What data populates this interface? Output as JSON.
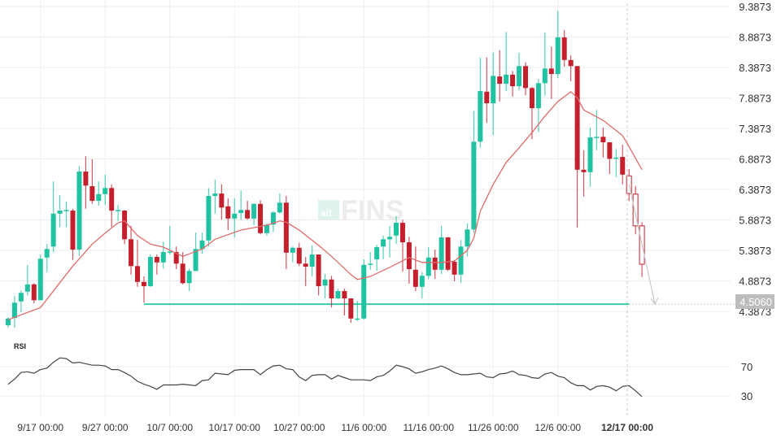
{
  "chart_data": [
    {
      "type": "candlestick",
      "colors": {
        "up": "#1fc3a1",
        "down": "#c41f2d",
        "ma": "#e06a6a",
        "support": "#3ccaa7",
        "projection": "#c8c8c8",
        "grid": "#ececec"
      },
      "y_ticks": [
        "9.3873",
        "8.8873",
        "8.3873",
        "7.8873",
        "7.3873",
        "6.8873",
        "6.3873",
        "5.8873",
        "5.3873",
        "4.8873",
        "4.3873"
      ],
      "ylim": [
        4.2,
        9.45
      ],
      "x_ticks": [
        "9/17 00:00",
        "9/27 00:00",
        "10/7 00:00",
        "10/17 00:00",
        "10/27 00:00",
        "11/6 00:00",
        "11/16 00:00",
        "11/26 00:00",
        "12/6 00:00"
      ],
      "crosshair_label": "12/17 00:00",
      "candle_fields": [
        "date",
        "open",
        "high",
        "low",
        "close"
      ],
      "candles": [
        [
          "9/12",
          4.16,
          4.29,
          4.12,
          4.27
        ],
        [
          "9/13",
          4.28,
          4.64,
          4.12,
          4.53
        ],
        [
          "9/14",
          4.55,
          4.73,
          4.37,
          4.69
        ],
        [
          "9/15",
          4.71,
          5.15,
          4.65,
          4.83
        ],
        [
          "9/16",
          4.83,
          4.85,
          4.52,
          4.57
        ],
        [
          "9/17",
          4.57,
          5.32,
          4.57,
          5.25
        ],
        [
          "9/18",
          5.27,
          5.49,
          5.03,
          5.41
        ],
        [
          "9/19",
          5.45,
          6.52,
          5.36,
          5.99
        ],
        [
          "9/20",
          5.99,
          6.29,
          5.77,
          6.04
        ],
        [
          "9/21",
          6.03,
          6.19,
          5.77,
          6.05
        ],
        [
          "9/22",
          6.04,
          6.07,
          5.23,
          5.4
        ],
        [
          "9/23",
          5.4,
          6.77,
          5.29,
          6.68
        ],
        [
          "9/24",
          6.68,
          6.93,
          6.07,
          6.45
        ],
        [
          "9/25",
          6.44,
          6.88,
          6.15,
          6.2
        ],
        [
          "9/26",
          6.2,
          6.52,
          6.12,
          6.31
        ],
        [
          "9/27",
          6.31,
          6.63,
          6.13,
          6.41
        ],
        [
          "9/28",
          6.41,
          6.47,
          5.77,
          6.04
        ],
        [
          "9/29",
          6.03,
          6.13,
          5.87,
          6.05
        ],
        [
          "9/30",
          6.04,
          6.05,
          5.49,
          5.57
        ],
        [
          "10/1",
          5.57,
          5.79,
          4.99,
          5.13
        ],
        [
          "10/2",
          5.13,
          5.56,
          4.79,
          4.87
        ],
        [
          "10/3",
          4.87,
          4.96,
          4.53,
          4.8
        ],
        [
          "10/4",
          4.8,
          5.32,
          4.79,
          5.28
        ],
        [
          "10/5",
          5.28,
          5.32,
          4.99,
          5.19
        ],
        [
          "10/6",
          5.19,
          5.53,
          5.09,
          5.36
        ],
        [
          "10/7",
          5.35,
          5.79,
          5.32,
          5.37
        ],
        [
          "10/8",
          5.36,
          5.45,
          5.08,
          5.17
        ],
        [
          "10/9",
          5.17,
          5.36,
          4.83,
          4.85
        ],
        [
          "10/10",
          4.85,
          5.09,
          4.72,
          5.05
        ],
        [
          "10/11",
          5.05,
          5.68,
          5.05,
          5.41
        ],
        [
          "10/12",
          5.41,
          5.68,
          5.33,
          5.55
        ],
        [
          "10/13",
          5.55,
          6.41,
          5.45,
          6.28
        ],
        [
          "10/14",
          6.28,
          6.55,
          5.99,
          6.32
        ],
        [
          "10/15",
          6.32,
          6.47,
          5.89,
          6.09
        ],
        [
          "10/16",
          6.11,
          6.24,
          5.72,
          5.91
        ],
        [
          "10/17",
          5.91,
          6.24,
          5.6,
          5.99
        ],
        [
          "10/18",
          6.0,
          6.37,
          5.89,
          6.05
        ],
        [
          "10/19",
          6.05,
          6.2,
          5.89,
          5.91
        ],
        [
          "10/20",
          5.91,
          6.16,
          5.8,
          6.15
        ],
        [
          "10/21",
          6.15,
          6.21,
          5.65,
          5.67
        ],
        [
          "10/22",
          5.67,
          5.83,
          5.63,
          5.81
        ],
        [
          "10/23",
          5.81,
          6.03,
          5.69,
          6.01
        ],
        [
          "10/24",
          6.01,
          6.32,
          5.99,
          6.17
        ],
        [
          "10/25",
          6.17,
          6.28,
          5.08,
          5.35
        ],
        [
          "10/26",
          5.35,
          5.45,
          5.19,
          5.43
        ],
        [
          "10/27",
          5.43,
          5.51,
          5.13,
          5.17
        ],
        [
          "10/28",
          5.17,
          5.28,
          4.8,
          5.12
        ],
        [
          "10/29",
          5.12,
          5.47,
          4.96,
          5.32
        ],
        [
          "10/30",
          5.32,
          5.32,
          4.65,
          4.8
        ],
        [
          "10/31",
          4.81,
          5.0,
          4.6,
          4.91
        ],
        [
          "11/1",
          4.91,
          4.97,
          4.45,
          4.6
        ],
        [
          "11/2",
          4.6,
          4.76,
          4.59,
          4.72
        ],
        [
          "11/3",
          4.72,
          4.76,
          4.32,
          4.6
        ],
        [
          "11/4",
          4.6,
          4.6,
          4.2,
          4.27
        ],
        [
          "11/5",
          4.26,
          4.56,
          4.23,
          4.27
        ],
        [
          "11/6",
          4.27,
          5.24,
          4.25,
          5.15
        ],
        [
          "11/7",
          5.15,
          5.36,
          5.07,
          5.17
        ],
        [
          "11/8",
          5.24,
          5.48,
          5.05,
          5.44
        ],
        [
          "11/9",
          5.45,
          5.63,
          5.24,
          5.57
        ],
        [
          "11/10",
          5.57,
          5.79,
          5.27,
          5.61
        ],
        [
          "11/11",
          5.63,
          5.95,
          5.49,
          5.84
        ],
        [
          "11/12",
          5.84,
          5.89,
          5.04,
          5.52
        ],
        [
          "11/13",
          5.52,
          5.61,
          4.84,
          5.08
        ],
        [
          "11/14",
          5.07,
          5.45,
          4.72,
          4.79
        ],
        [
          "11/15",
          4.79,
          5.03,
          4.6,
          4.97
        ],
        [
          "11/16",
          4.97,
          5.44,
          4.92,
          5.27
        ],
        [
          "11/17",
          5.27,
          5.4,
          4.92,
          5.07
        ],
        [
          "11/18",
          5.07,
          5.79,
          5.0,
          5.6
        ],
        [
          "11/19",
          5.6,
          5.61,
          5.05,
          5.07
        ],
        [
          "11/20",
          5.2,
          5.23,
          4.88,
          4.99
        ],
        [
          "11/21",
          4.99,
          5.56,
          4.85,
          5.45
        ],
        [
          "11/22",
          5.45,
          5.83,
          5.29,
          5.73
        ],
        [
          "11/23",
          5.73,
          7.67,
          5.67,
          7.17
        ],
        [
          "11/24",
          7.17,
          8.55,
          7.07,
          8.0
        ],
        [
          "11/25",
          7.99,
          8.55,
          7.48,
          7.8
        ],
        [
          "11/26",
          7.8,
          8.63,
          7.28,
          8.25
        ],
        [
          "11/27",
          8.24,
          8.67,
          7.83,
          8.12
        ],
        [
          "11/28",
          8.12,
          8.97,
          8.0,
          8.27
        ],
        [
          "11/29",
          8.27,
          8.33,
          7.91,
          8.08
        ],
        [
          "11/30",
          8.08,
          8.63,
          8.01,
          8.41
        ],
        [
          "12/1",
          8.41,
          8.47,
          7.93,
          8.05
        ],
        [
          "12/2",
          8.05,
          8.07,
          7.21,
          7.72
        ],
        [
          "12/3",
          7.72,
          8.2,
          7.33,
          8.13
        ],
        [
          "12/4",
          8.13,
          8.96,
          7.93,
          8.37
        ],
        [
          "12/5",
          8.37,
          8.73,
          7.87,
          8.28
        ],
        [
          "12/6",
          8.28,
          9.32,
          8.21,
          8.88
        ],
        [
          "12/7",
          8.88,
          9.0,
          8.4,
          8.51
        ],
        [
          "12/8",
          8.51,
          8.59,
          8.16,
          8.41
        ],
        [
          "12/9",
          8.41,
          8.41,
          5.76,
          6.71
        ],
        [
          "12/10",
          6.71,
          7.03,
          6.27,
          6.67
        ],
        [
          "12/11",
          6.67,
          7.4,
          6.43,
          7.24
        ],
        [
          "12/12",
          7.25,
          7.69,
          7.03,
          7.25
        ],
        [
          "12/13",
          7.25,
          7.4,
          6.91,
          7.16
        ],
        [
          "12/14",
          7.16,
          7.16,
          6.64,
          6.89
        ],
        [
          "12/15",
          6.9,
          7.05,
          6.59,
          6.91
        ],
        [
          "12/16",
          6.92,
          7.12,
          6.47,
          6.63
        ],
        [
          "12/17",
          6.61,
          6.72,
          6.2,
          6.32
        ],
        [
          "12/18",
          6.31,
          6.44,
          5.65,
          5.79
        ],
        [
          "12/19",
          5.79,
          5.85,
          4.95,
          5.16
        ]
      ],
      "hollow_from_date": "12/17",
      "moving_average": [
        [
          "9/12",
          4.25
        ],
        [
          "9/17",
          4.45
        ],
        [
          "9/22",
          5.13
        ],
        [
          "9/25",
          5.49
        ],
        [
          "9/27",
          5.67
        ],
        [
          "9/29",
          5.84
        ],
        [
          "9/30",
          5.87
        ],
        [
          "10/2",
          5.63
        ],
        [
          "10/4",
          5.49
        ],
        [
          "10/6",
          5.44
        ],
        [
          "10/9",
          5.29
        ],
        [
          "10/12",
          5.41
        ],
        [
          "10/14",
          5.57
        ],
        [
          "10/18",
          5.72
        ],
        [
          "10/22",
          5.8
        ],
        [
          "10/24",
          5.87
        ],
        [
          "10/25",
          5.85
        ],
        [
          "10/27",
          5.72
        ],
        [
          "10/30",
          5.47
        ],
        [
          "11/1",
          5.29
        ],
        [
          "11/4",
          4.99
        ],
        [
          "11/5",
          4.91
        ],
        [
          "11/7",
          4.96
        ],
        [
          "11/10",
          5.11
        ],
        [
          "11/13",
          5.27
        ],
        [
          "11/15",
          5.19
        ],
        [
          "11/18",
          5.19
        ],
        [
          "11/20",
          5.21
        ],
        [
          "11/22",
          5.39
        ],
        [
          "11/23",
          5.59
        ],
        [
          "11/24",
          6.03
        ],
        [
          "11/26",
          6.47
        ],
        [
          "11/28",
          6.83
        ],
        [
          "11/30",
          7.07
        ],
        [
          "12/2",
          7.32
        ],
        [
          "12/4",
          7.59
        ],
        [
          "12/6",
          7.83
        ],
        [
          "12/8",
          7.99
        ],
        [
          "12/9",
          7.89
        ],
        [
          "12/10",
          7.69
        ],
        [
          "12/13",
          7.52
        ],
        [
          "12/16",
          7.27
        ],
        [
          "12/17",
          7.09
        ],
        [
          "12/19",
          6.71
        ]
      ],
      "support_level": {
        "value": 4.506,
        "label": "4.5060",
        "from_date": "10/3",
        "to_date": "12/17"
      },
      "projection_arrow": {
        "from": [
          "12/17",
          6.47
        ],
        "to": [
          "12/21",
          4.506
        ]
      },
      "watermark": {
        "small": "alt",
        "large": "FINS"
      }
    },
    {
      "type": "line",
      "title": "RSI",
      "y_ticks": [
        "70",
        "30"
      ],
      "color": "#444444",
      "values": [
        46,
        53,
        62,
        63,
        61,
        66,
        68,
        76,
        82,
        81,
        75,
        76,
        74,
        72,
        72,
        71,
        66,
        66,
        62,
        57,
        50,
        46,
        43,
        39,
        45,
        45,
        45,
        46,
        45,
        44,
        51,
        52,
        61,
        60,
        59,
        65,
        66,
        66,
        66,
        59,
        66,
        71,
        72,
        67,
        66,
        56,
        51,
        58,
        59,
        59,
        53,
        58,
        55,
        52,
        52,
        52,
        51,
        56,
        58,
        64,
        72,
        70,
        67,
        61,
        63,
        66,
        68,
        71,
        67,
        62,
        59,
        59,
        60,
        61,
        56,
        55,
        60,
        61,
        64,
        59,
        58,
        55,
        54,
        60,
        62,
        57,
        55,
        48,
        44,
        44,
        38,
        43,
        44,
        42,
        37,
        43,
        44,
        37,
        29
      ]
    }
  ]
}
